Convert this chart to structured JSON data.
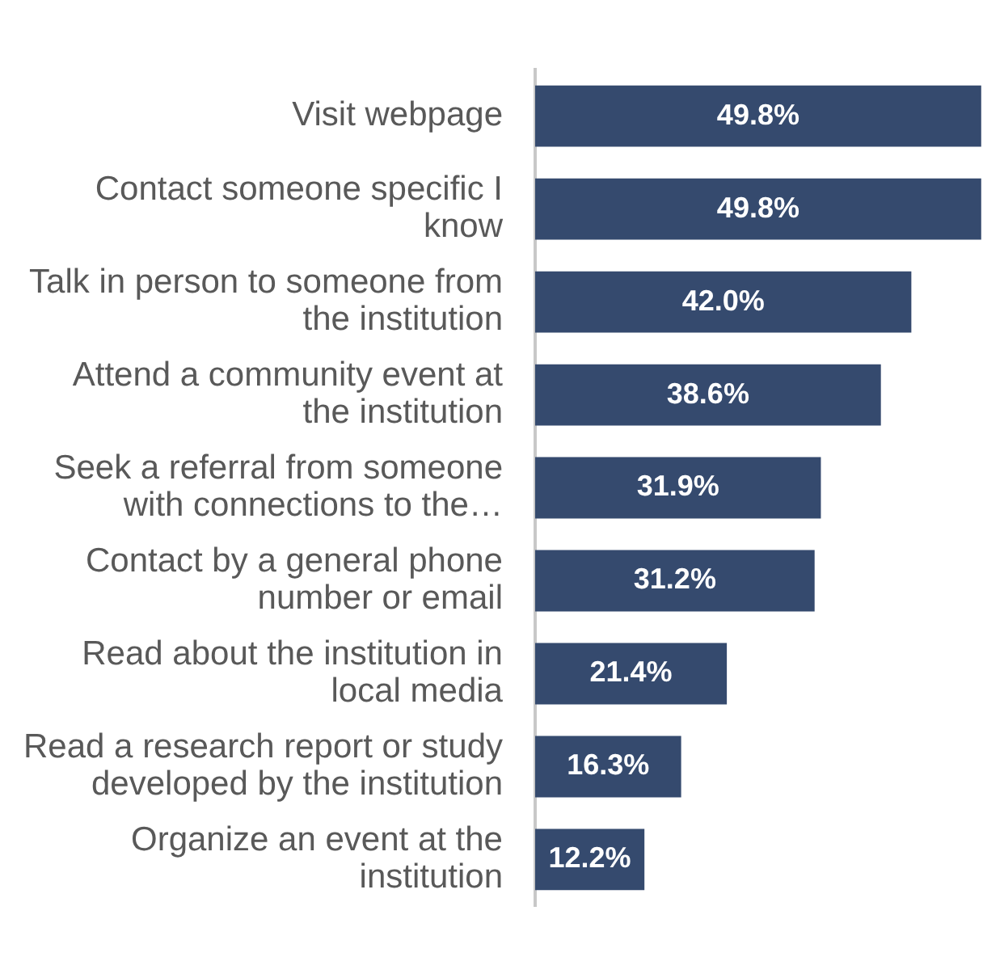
{
  "chart_data": {
    "type": "bar",
    "orientation": "horizontal",
    "categories": [
      "Visit webpage",
      "Contact someone specific I know",
      "Talk in person to someone from the institution",
      "Attend a community event at the institution",
      "Seek a referral from someone with connections to the…",
      "Contact by a general phone number or email",
      "Read about the institution in local media",
      "Read a research report or study developed by the institution",
      "Organize an event at the institution"
    ],
    "values": [
      49.8,
      49.8,
      42.0,
      38.6,
      31.9,
      31.2,
      21.4,
      16.3,
      12.2
    ],
    "value_labels": [
      "49.8%",
      "49.8%",
      "42.0%",
      "38.6%",
      "31.9%",
      "31.2%",
      "21.4%",
      "16.3%",
      "12.2%"
    ],
    "color": "#354a6e"
  }
}
